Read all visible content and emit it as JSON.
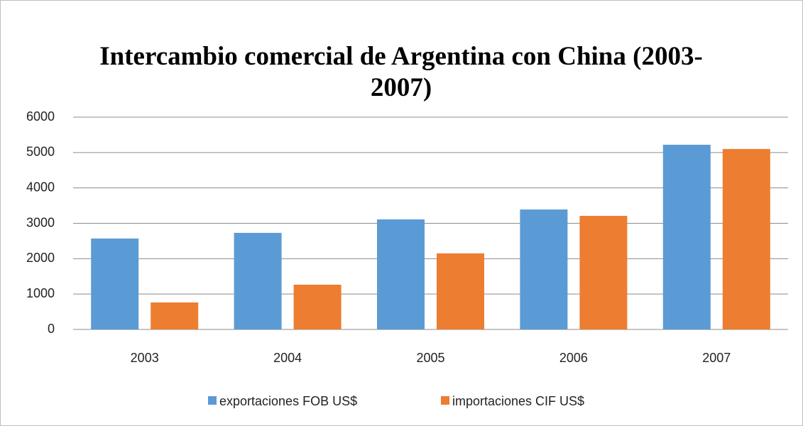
{
  "chart_data": {
    "type": "bar",
    "title": "Intercambio comercial de Argentina con China (2003-2007)",
    "categories": [
      "2003",
      "2004",
      "2005",
      "2006",
      "2007"
    ],
    "series": [
      {
        "name": "exportaciones FOB US$",
        "color": "#5b9bd5",
        "values": [
          2570,
          2730,
          3110,
          3390,
          5220
        ]
      },
      {
        "name": "importaciones CIF US$",
        "color": "#ed7d31",
        "values": [
          763,
          1265,
          2150,
          3210,
          5100
        ]
      }
    ],
    "ylim": [
      0,
      6000
    ],
    "yticks": [
      0,
      1000,
      2000,
      3000,
      4000,
      5000,
      6000
    ],
    "grid": true,
    "legend": "bottom"
  }
}
